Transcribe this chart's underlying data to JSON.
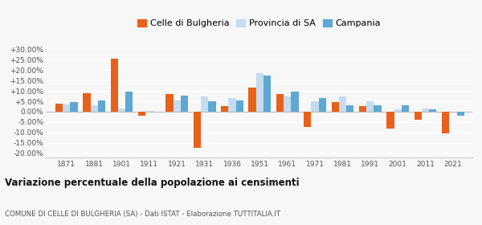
{
  "years": [
    1871,
    1881,
    1901,
    1911,
    1921,
    1931,
    1936,
    1951,
    1961,
    1971,
    1981,
    1991,
    2001,
    2011,
    2021
  ],
  "celle": [
    4.0,
    9.0,
    25.5,
    -2.0,
    8.5,
    -17.5,
    2.5,
    11.5,
    8.5,
    -7.5,
    4.5,
    2.5,
    -8.0,
    -4.0,
    -10.5
  ],
  "provincia": [
    3.5,
    3.0,
    1.5,
    0.5,
    5.5,
    7.5,
    6.5,
    18.5,
    7.5,
    5.0,
    7.5,
    5.0,
    1.0,
    1.5,
    null
  ],
  "campania": [
    4.8,
    5.5,
    9.5,
    null,
    7.8,
    5.0,
    5.3,
    17.5,
    9.8,
    6.5,
    3.0,
    3.0,
    3.2,
    1.0,
    -2.0
  ],
  "color_celle": "#E8611A",
  "color_provincia": "#C5DCEE",
  "color_campania": "#5FA8D3",
  "title": "Variazione percentuale della popolazione ai censimenti",
  "subtitle": "COMUNE DI CELLE DI BULGHERIA (SA) - Dati ISTAT - Elaborazione TUTTITALIA.IT",
  "legend_labels": [
    "Celle di Bulgheria",
    "Provincia di SA",
    "Campania"
  ],
  "ylim": [
    -22,
    32
  ],
  "yticks": [
    -20,
    -15,
    -10,
    -5,
    0,
    5,
    10,
    15,
    20,
    25,
    30
  ],
  "background_color": "#f7f7f7"
}
